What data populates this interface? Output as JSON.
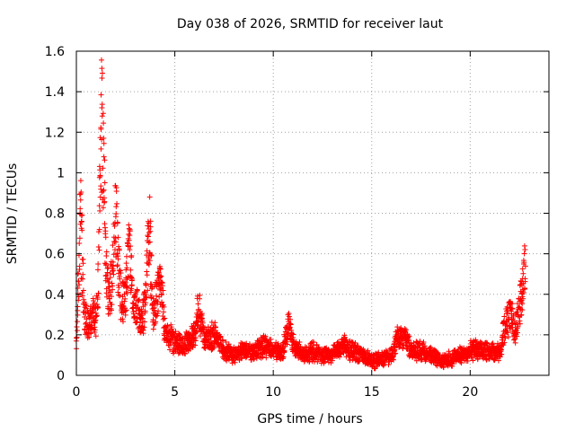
{
  "chart_data": {
    "type": "scatter",
    "title": "Day 038 of 2026, SRMTID for receiver laut",
    "xlabel": "GPS time / hours",
    "ylabel": "SRMTID / TECUs",
    "xlim": [
      0,
      24
    ],
    "ylim": [
      0,
      1.6
    ],
    "xticks": [
      0,
      5,
      10,
      15,
      20
    ],
    "xtick_labels": [
      "0",
      "5",
      "10",
      "15",
      "20"
    ],
    "yticks": [
      0,
      0.2,
      0.4,
      0.6,
      0.8,
      1.0,
      1.2,
      1.4,
      1.6
    ],
    "ytick_labels": [
      "0",
      "0.2",
      "0.4",
      "0.6",
      "0.8",
      "1",
      "1.2",
      "1.4",
      "1.6"
    ],
    "grid": true,
    "marker": "+",
    "color": "#ff0000",
    "series": [
      {
        "name": "SRMTID",
        "profile": [
          [
            0.0,
            0.15
          ],
          [
            0.1,
            0.45
          ],
          [
            0.2,
            0.82
          ],
          [
            0.3,
            0.55
          ],
          [
            0.4,
            0.3
          ],
          [
            0.6,
            0.25
          ],
          [
            0.8,
            0.3
          ],
          [
            1.0,
            0.28
          ],
          [
            1.1,
            0.45
          ],
          [
            1.2,
            0.95
          ],
          [
            1.3,
            1.3
          ],
          [
            1.4,
            1.0
          ],
          [
            1.5,
            0.55
          ],
          [
            1.6,
            0.42
          ],
          [
            1.8,
            0.45
          ],
          [
            2.0,
            0.8
          ],
          [
            2.1,
            0.6
          ],
          [
            2.3,
            0.35
          ],
          [
            2.5,
            0.4
          ],
          [
            2.7,
            0.65
          ],
          [
            2.9,
            0.3
          ],
          [
            3.1,
            0.33
          ],
          [
            3.3,
            0.25
          ],
          [
            3.5,
            0.35
          ],
          [
            3.7,
            0.72
          ],
          [
            3.9,
            0.3
          ],
          [
            4.1,
            0.4
          ],
          [
            4.3,
            0.45
          ],
          [
            4.5,
            0.2
          ],
          [
            5.0,
            0.17
          ],
          [
            5.5,
            0.15
          ],
          [
            6.0,
            0.2
          ],
          [
            6.2,
            0.33
          ],
          [
            6.5,
            0.18
          ],
          [
            7.0,
            0.2
          ],
          [
            7.5,
            0.12
          ],
          [
            8.0,
            0.1
          ],
          [
            8.5,
            0.12
          ],
          [
            9.0,
            0.12
          ],
          [
            9.5,
            0.15
          ],
          [
            10.0,
            0.12
          ],
          [
            10.5,
            0.12
          ],
          [
            10.8,
            0.25
          ],
          [
            11.0,
            0.15
          ],
          [
            11.5,
            0.1
          ],
          [
            12.0,
            0.12
          ],
          [
            12.5,
            0.1
          ],
          [
            13.0,
            0.1
          ],
          [
            13.5,
            0.15
          ],
          [
            14.0,
            0.12
          ],
          [
            14.5,
            0.1
          ],
          [
            15.0,
            0.07
          ],
          [
            15.5,
            0.08
          ],
          [
            16.0,
            0.1
          ],
          [
            16.3,
            0.18
          ],
          [
            16.6,
            0.2
          ],
          [
            17.0,
            0.12
          ],
          [
            17.5,
            0.12
          ],
          [
            18.0,
            0.1
          ],
          [
            18.5,
            0.07
          ],
          [
            19.0,
            0.08
          ],
          [
            19.5,
            0.1
          ],
          [
            20.0,
            0.12
          ],
          [
            20.5,
            0.13
          ],
          [
            21.0,
            0.12
          ],
          [
            21.5,
            0.12
          ],
          [
            21.8,
            0.25
          ],
          [
            22.0,
            0.3
          ],
          [
            22.3,
            0.22
          ],
          [
            22.6,
            0.4
          ],
          [
            22.8,
            0.55
          ]
        ]
      }
    ]
  }
}
